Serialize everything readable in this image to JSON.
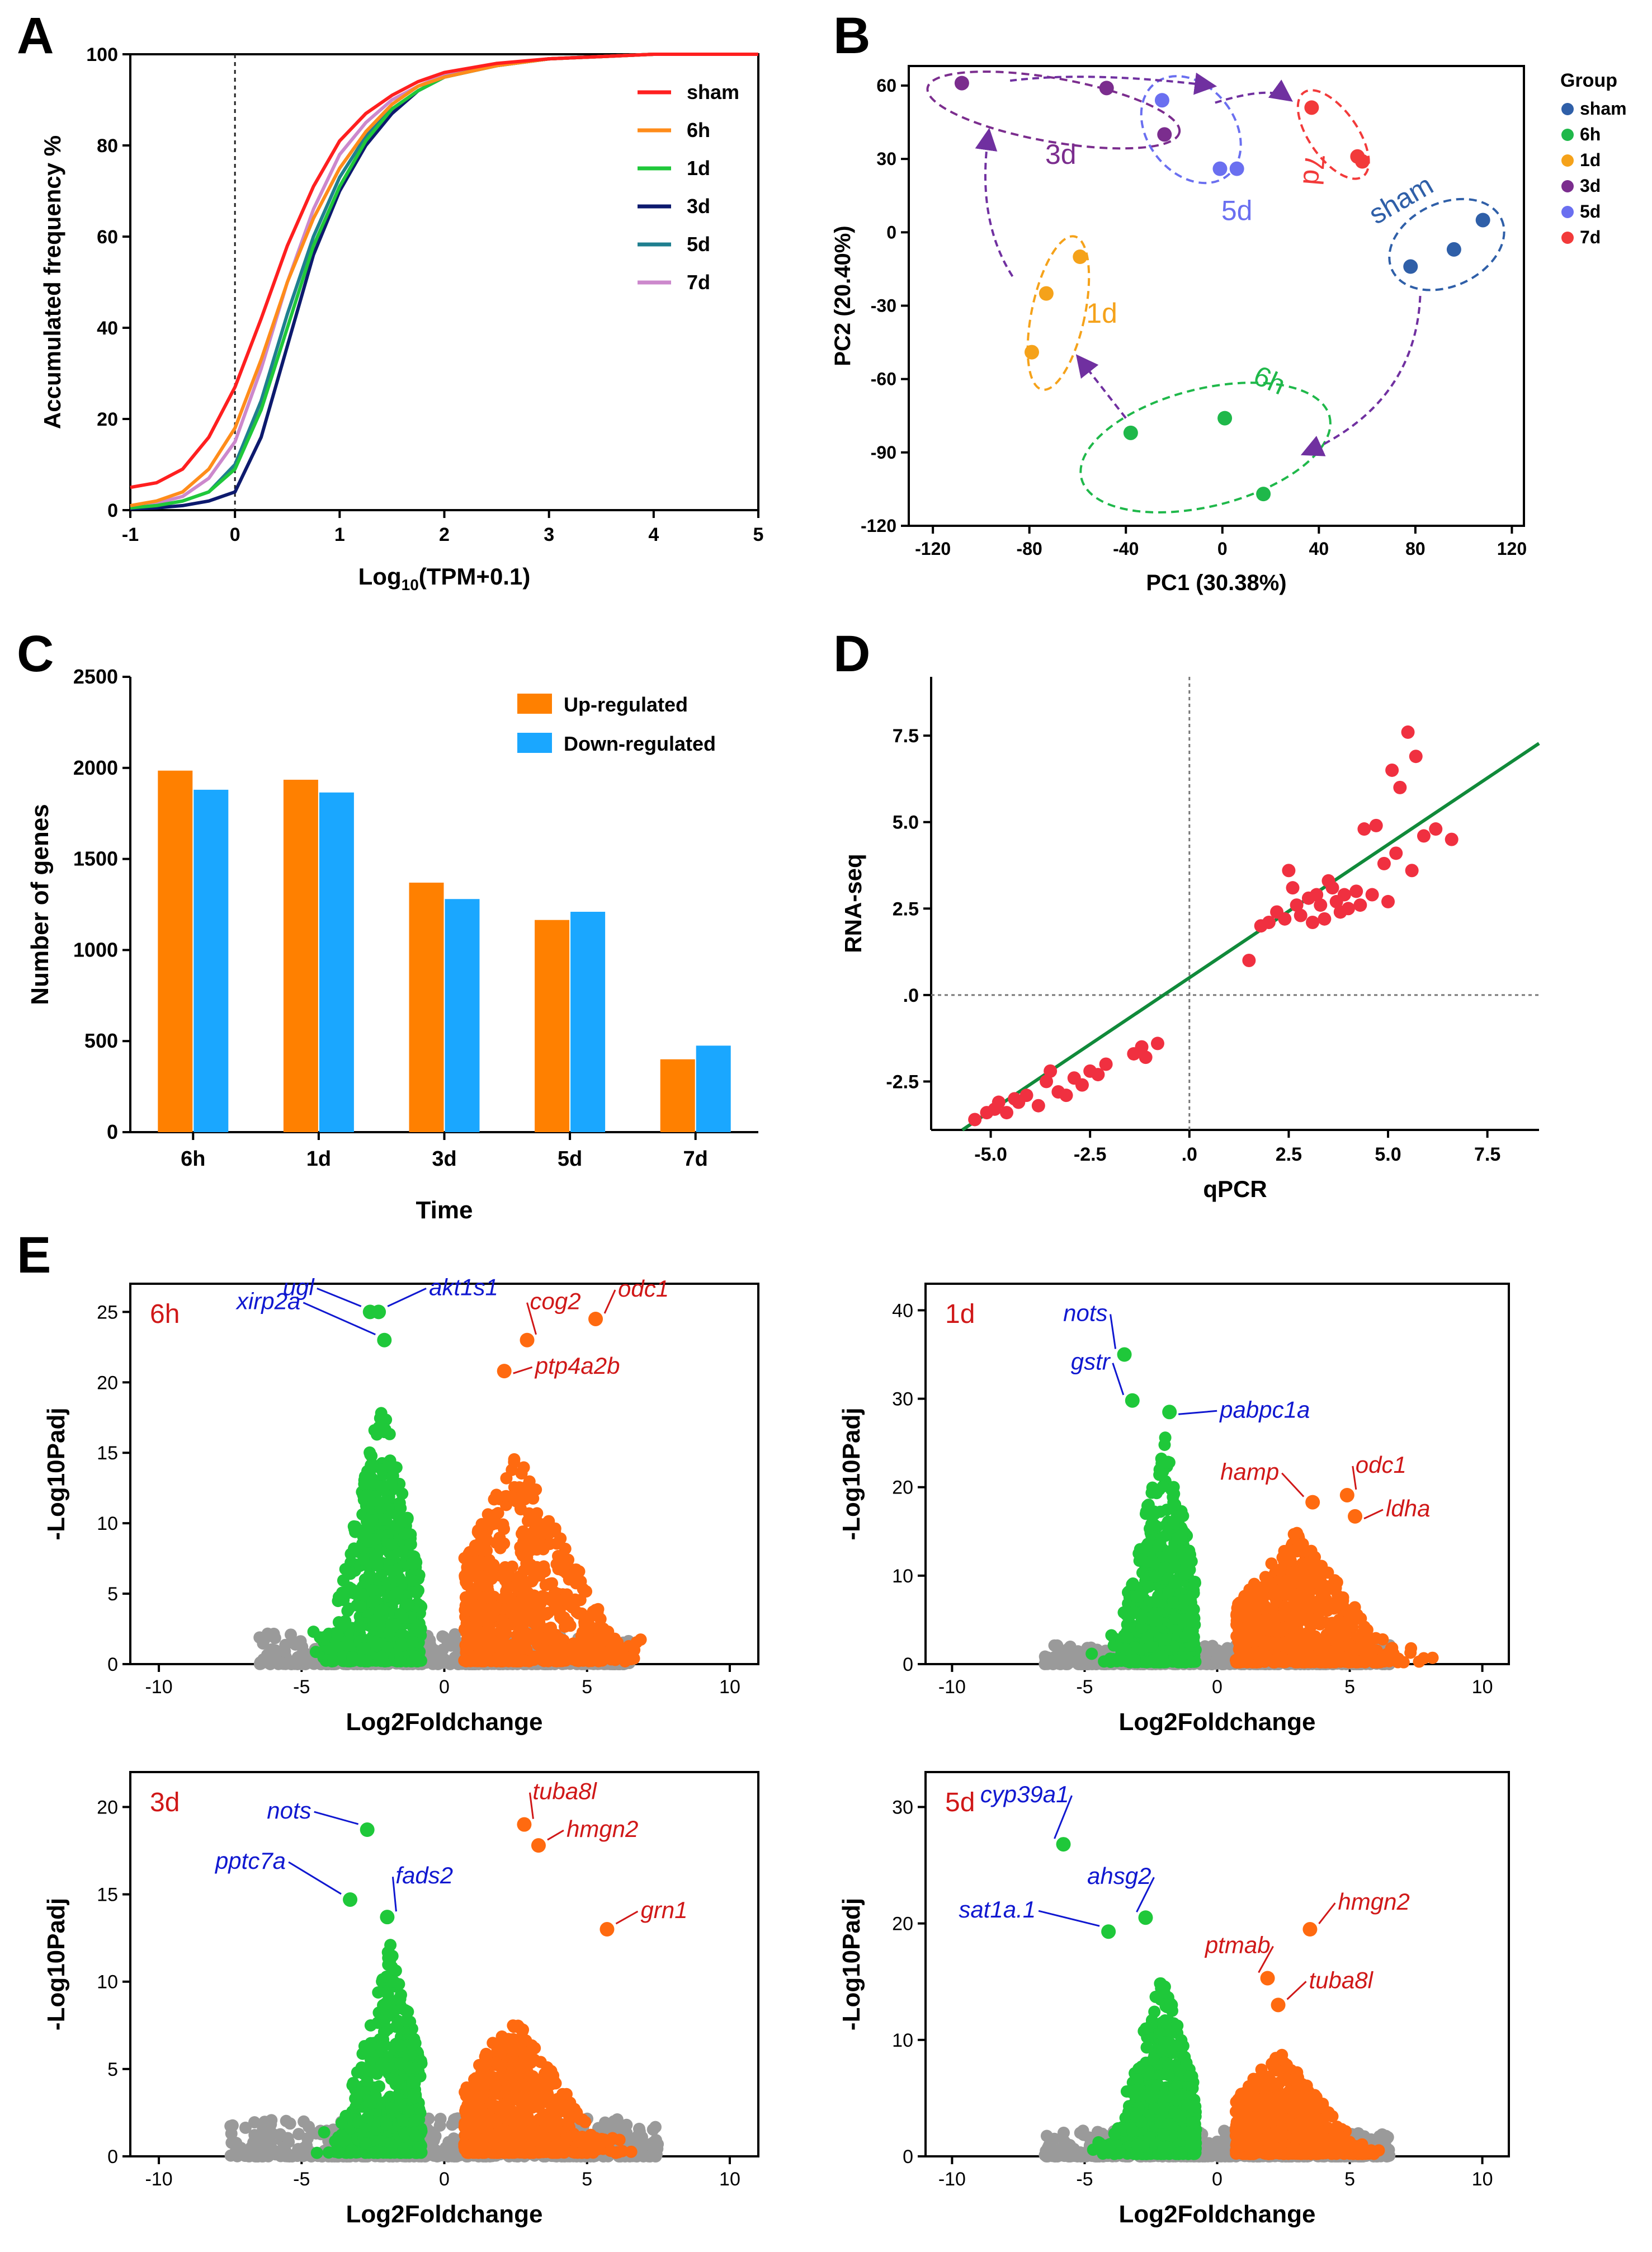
{
  "figure": {
    "panelLetters": [
      "A",
      "B",
      "C",
      "D",
      "E"
    ],
    "colors": {
      "sham_red": "#ff1f1f",
      "h6_orange": "#ff8c1a",
      "d1_green": "#1fc83a",
      "d3_navy": "#0d1a6e",
      "d5_teal": "#1f7f8f",
      "d7_pink": "#cc88cc",
      "pca_sham": "#2f5fa8",
      "pca_6h": "#1fb84a",
      "pca_1d": "#f5a21a",
      "pca_3d": "#7b2d8e",
      "pca_5d": "#6a6ff0",
      "pca_7d": "#f23a3a",
      "bar_up": "#ff8000",
      "bar_down": "#1aa7ff",
      "volcano_up": "#ff6a10",
      "volcano_down": "#1fc83a",
      "volcano_ns": "#9a9a9a",
      "label_blue": "#1018d0",
      "label_red": "#d01818",
      "arrow_purple": "#7030a0",
      "fit_green": "#108a3a",
      "d_points": "#f03040"
    }
  },
  "chart_data": [
    {
      "panel": "A",
      "type": "line",
      "xlabel": "Log10(TPM+0.1)",
      "ylabel": "Accumulated frequency %",
      "xlim": [
        -1,
        5
      ],
      "ylim": [
        0,
        100
      ],
      "xticks": [
        "-1",
        "0",
        "1",
        "2",
        "3",
        "4",
        "5"
      ],
      "yticks": [
        "0",
        "20",
        "40",
        "60",
        "80",
        "100"
      ],
      "reference_line_x": 0,
      "x": [
        -1,
        -0.75,
        -0.5,
        -0.25,
        0,
        0.25,
        0.5,
        0.75,
        1,
        1.25,
        1.5,
        1.75,
        2,
        2.5,
        3,
        3.5,
        4,
        4.5,
        5
      ],
      "series": [
        {
          "name": "sham",
          "color_key": "sham_red",
          "values": [
            5,
            6,
            9,
            16,
            27,
            42,
            58,
            71,
            81,
            87,
            91,
            94,
            96,
            98,
            99,
            99.5,
            100,
            100,
            100
          ]
        },
        {
          "name": "6h",
          "color_key": "h6_orange",
          "values": [
            1,
            2,
            4,
            9,
            18,
            33,
            50,
            64,
            75,
            83,
            89,
            93,
            95,
            97.5,
            99,
            99.5,
            100,
            100,
            100
          ]
        },
        {
          "name": "1d",
          "color_key": "d1_green",
          "values": [
            0.5,
            1,
            2,
            4,
            9,
            22,
            40,
            58,
            71,
            81,
            88,
            92,
            95,
            97.5,
            99,
            99.5,
            100,
            100,
            100
          ]
        },
        {
          "name": "3d",
          "color_key": "d3_navy",
          "values": [
            0.3,
            0.5,
            1,
            2,
            4,
            16,
            36,
            56,
            70,
            80,
            87,
            92,
            95,
            97.5,
            99,
            99.5,
            100,
            100,
            100
          ]
        },
        {
          "name": "5d",
          "color_key": "d5_teal",
          "values": [
            0.5,
            1,
            2,
            4,
            10,
            24,
            43,
            60,
            73,
            82,
            88,
            92,
            95,
            97.5,
            99,
            99.5,
            100,
            100,
            100
          ]
        },
        {
          "name": "7d",
          "color_key": "d7_pink",
          "values": [
            0.8,
            1.5,
            3,
            7,
            15,
            31,
            50,
            66,
            78,
            85,
            90,
            93,
            95.5,
            97.5,
            99,
            99.5,
            100,
            100,
            100
          ]
        }
      ]
    },
    {
      "panel": "B",
      "type": "scatter",
      "xlabel": "PC1 (30.38%)",
      "ylabel": "PC2 (20.40%)",
      "xlim": [
        -130,
        125
      ],
      "ylim": [
        -120,
        68
      ],
      "xticks": [
        "-120",
        "-80",
        "-40",
        "0",
        "40",
        "80",
        "120"
      ],
      "yticks": [
        "-120",
        "-90",
        "-60",
        "-30",
        "0",
        "30",
        "60"
      ],
      "legend_title": "Group",
      "groups": [
        {
          "name": "sham",
          "color_key": "pca_sham",
          "points": [
            [
              78,
              -14
            ],
            [
              96,
              -7
            ],
            [
              108,
              5
            ]
          ],
          "cluster_label": "sham"
        },
        {
          "name": "6h",
          "color_key": "pca_6h",
          "points": [
            [
              -38,
              -82
            ],
            [
              1,
              -76
            ],
            [
              17,
              -107
            ]
          ],
          "cluster_label": "6h"
        },
        {
          "name": "1d",
          "color_key": "pca_1d",
          "points": [
            [
              -59,
              -10
            ],
            [
              -73,
              -25
            ],
            [
              -79,
              -49
            ]
          ],
          "cluster_label": "1d"
        },
        {
          "name": "3d",
          "color_key": "pca_3d",
          "points": [
            [
              -108,
              61
            ],
            [
              -48,
              59
            ],
            [
              -24,
              40
            ]
          ],
          "cluster_label": "3d"
        },
        {
          "name": "5d",
          "color_key": "pca_5d",
          "points": [
            [
              -25,
              54
            ],
            [
              -1,
              26
            ],
            [
              6,
              26
            ]
          ],
          "cluster_label": "5d"
        },
        {
          "name": "7d",
          "color_key": "pca_7d",
          "points": [
            [
              37,
              51
            ],
            [
              56,
              31
            ],
            [
              58,
              29
            ]
          ],
          "cluster_label": "7d"
        }
      ]
    },
    {
      "panel": "C",
      "type": "bar",
      "xlabel": "Time",
      "ylabel": "Number of genes",
      "ylim": [
        0,
        2500
      ],
      "yticks": [
        "0",
        "500",
        "1000",
        "1500",
        "2000",
        "2500"
      ],
      "categories": [
        "6h",
        "1d",
        "3d",
        "5d",
        "7d"
      ],
      "series": [
        {
          "name": "Up-regulated",
          "color_key": "bar_up",
          "values": [
            1985,
            1935,
            1370,
            1165,
            400
          ]
        },
        {
          "name": "Down-regulated",
          "color_key": "bar_down",
          "values": [
            1880,
            1865,
            1280,
            1210,
            475
          ]
        }
      ]
    },
    {
      "panel": "D",
      "type": "scatter",
      "xlabel": "qPCR",
      "ylabel": "RNA-seq",
      "xlim": [
        -6.5,
        8.8
      ],
      "ylim": [
        -3.9,
        9.2
      ],
      "xticks": [
        "-5.0",
        "-2.5",
        ".0",
        "2.5",
        "5.0",
        "7.5"
      ],
      "yticks": [
        "-2.5",
        ".0",
        "2.5",
        "5.0",
        "7.5"
      ],
      "fit_line": {
        "slope": 0.77,
        "intercept": 0.5
      },
      "points": [
        [
          -5.4,
          -3.6
        ],
        [
          -5.1,
          -3.4
        ],
        [
          -4.9,
          -3.3
        ],
        [
          -4.8,
          -3.1
        ],
        [
          -4.6,
          -3.4
        ],
        [
          -4.4,
          -3.0
        ],
        [
          -4.3,
          -3.1
        ],
        [
          -4.1,
          -2.9
        ],
        [
          -3.8,
          -3.2
        ],
        [
          -3.6,
          -2.5
        ],
        [
          -3.5,
          -2.2
        ],
        [
          -3.3,
          -2.8
        ],
        [
          -3.1,
          -2.9
        ],
        [
          -2.9,
          -2.4
        ],
        [
          -2.7,
          -2.6
        ],
        [
          -2.5,
          -2.2
        ],
        [
          -2.3,
          -2.3
        ],
        [
          -2.1,
          -2.0
        ],
        [
          -1.4,
          -1.7
        ],
        [
          -1.2,
          -1.5
        ],
        [
          -1.1,
          -1.8
        ],
        [
          -0.8,
          -1.4
        ],
        [
          1.5,
          1.0
        ],
        [
          1.8,
          2.0
        ],
        [
          2.0,
          2.1
        ],
        [
          2.2,
          2.4
        ],
        [
          2.4,
          2.2
        ],
        [
          2.5,
          3.6
        ],
        [
          2.6,
          3.1
        ],
        [
          2.7,
          2.6
        ],
        [
          2.8,
          2.3
        ],
        [
          3.0,
          2.8
        ],
        [
          3.1,
          2.1
        ],
        [
          3.2,
          2.9
        ],
        [
          3.3,
          2.6
        ],
        [
          3.4,
          2.2
        ],
        [
          3.5,
          3.3
        ],
        [
          3.6,
          3.1
        ],
        [
          3.7,
          2.7
        ],
        [
          3.8,
          2.4
        ],
        [
          3.9,
          2.9
        ],
        [
          4.0,
          2.5
        ],
        [
          4.2,
          3.0
        ],
        [
          4.3,
          2.6
        ],
        [
          4.4,
          4.8
        ],
        [
          4.6,
          2.9
        ],
        [
          4.7,
          4.9
        ],
        [
          4.9,
          3.8
        ],
        [
          5.0,
          2.7
        ],
        [
          5.1,
          6.5
        ],
        [
          5.2,
          4.1
        ],
        [
          5.3,
          6.0
        ],
        [
          5.5,
          7.6
        ],
        [
          5.6,
          3.6
        ],
        [
          5.7,
          6.9
        ],
        [
          5.9,
          4.6
        ],
        [
          6.2,
          4.8
        ],
        [
          6.6,
          4.5
        ]
      ]
    },
    {
      "panel": "E",
      "type": "scatter",
      "subtype": "volcano",
      "xlabel": "Log2Foldchange",
      "ylabel": "-Log10Padj",
      "xlim": [
        -11,
        11
      ],
      "xticks": [
        "-10",
        "-5",
        "0",
        "5",
        "10"
      ],
      "panels": [
        {
          "title": "6h",
          "ylim": [
            0,
            27
          ],
          "yticks": [
            "0",
            "5",
            "10",
            "15",
            "20",
            "25"
          ],
          "down": {
            "n": 620,
            "center": -2.2,
            "spread": 0.9,
            "peak": 19
          },
          "up": {
            "n": 760,
            "center": 2.6,
            "spread": 1.7,
            "peak": 15
          },
          "highlights": [
            {
              "label": "ugl",
              "color": "blue",
              "x": -2.6,
              "y": 25.0
            },
            {
              "label": "akt1s1",
              "color": "blue",
              "x": -2.3,
              "y": 25.0
            },
            {
              "label": "xirp2a",
              "color": "blue",
              "x": -2.1,
              "y": 23.0
            },
            {
              "label": "cog2",
              "color": "red",
              "x": 2.9,
              "y": 23.0
            },
            {
              "label": "odc1",
              "color": "red",
              "x": 5.3,
              "y": 24.5
            },
            {
              "label": "ptp4a2b",
              "color": "red",
              "x": 2.1,
              "y": 20.8
            }
          ]
        },
        {
          "title": "1d",
          "ylim": [
            0,
            43
          ],
          "yticks": [
            "0",
            "10",
            "20",
            "30",
            "40"
          ],
          "down": {
            "n": 600,
            "center": -2.0,
            "spread": 0.9,
            "peak": 26
          },
          "up": {
            "n": 760,
            "center": 3.0,
            "spread": 1.8,
            "peak": 15
          },
          "highlights": [
            {
              "label": "nots",
              "color": "blue",
              "x": -3.5,
              "y": 35.0
            },
            {
              "label": "gstr",
              "color": "blue",
              "x": -3.2,
              "y": 29.8
            },
            {
              "label": "pabpc1a",
              "color": "blue",
              "x": -1.8,
              "y": 28.5
            },
            {
              "label": "hamp",
              "color": "red",
              "x": 3.6,
              "y": 18.3
            },
            {
              "label": "odc1",
              "color": "red",
              "x": 4.9,
              "y": 19.1
            },
            {
              "label": "ldha",
              "color": "red",
              "x": 5.2,
              "y": 16.7
            }
          ]
        },
        {
          "title": "3d",
          "ylim": [
            0,
            22
          ],
          "yticks": [
            "0",
            "5",
            "10",
            "15",
            "20"
          ],
          "down": {
            "n": 560,
            "center": -1.9,
            "spread": 0.9,
            "peak": 12
          },
          "up": {
            "n": 700,
            "center": 2.4,
            "spread": 1.5,
            "peak": 8
          },
          "highlights": [
            {
              "label": "nots",
              "color": "blue",
              "x": -2.7,
              "y": 18.7
            },
            {
              "label": "pptc7a",
              "color": "blue",
              "x": -3.3,
              "y": 14.7
            },
            {
              "label": "fads2",
              "color": "blue",
              "x": -2.0,
              "y": 13.7
            },
            {
              "label": "tuba8l",
              "color": "red",
              "x": 2.8,
              "y": 19.0
            },
            {
              "label": "hmgn2",
              "color": "red",
              "x": 3.3,
              "y": 17.8
            },
            {
              "label": "grn1",
              "color": "red",
              "x": 5.7,
              "y": 13.0
            }
          ]
        },
        {
          "title": "5d",
          "ylim": [
            0,
            33
          ],
          "yticks": [
            "0",
            "10",
            "20",
            "30"
          ],
          "down": {
            "n": 540,
            "center": -2.1,
            "spread": 0.9,
            "peak": 16
          },
          "up": {
            "n": 640,
            "center": 2.3,
            "spread": 1.5,
            "peak": 9
          },
          "highlights": [
            {
              "label": "cyp39a1",
              "color": "blue",
              "x": -5.8,
              "y": 26.8
            },
            {
              "label": "ahsg2",
              "color": "blue",
              "x": -2.7,
              "y": 20.5
            },
            {
              "label": "sat1a.1",
              "color": "blue",
              "x": -4.1,
              "y": 19.3
            },
            {
              "label": "hmgn2",
              "color": "red",
              "x": 3.5,
              "y": 19.5
            },
            {
              "label": "ptmab",
              "color": "red",
              "x": 1.9,
              "y": 15.3
            },
            {
              "label": "tuba8l",
              "color": "red",
              "x": 2.3,
              "y": 13.0
            }
          ]
        }
      ]
    }
  ]
}
